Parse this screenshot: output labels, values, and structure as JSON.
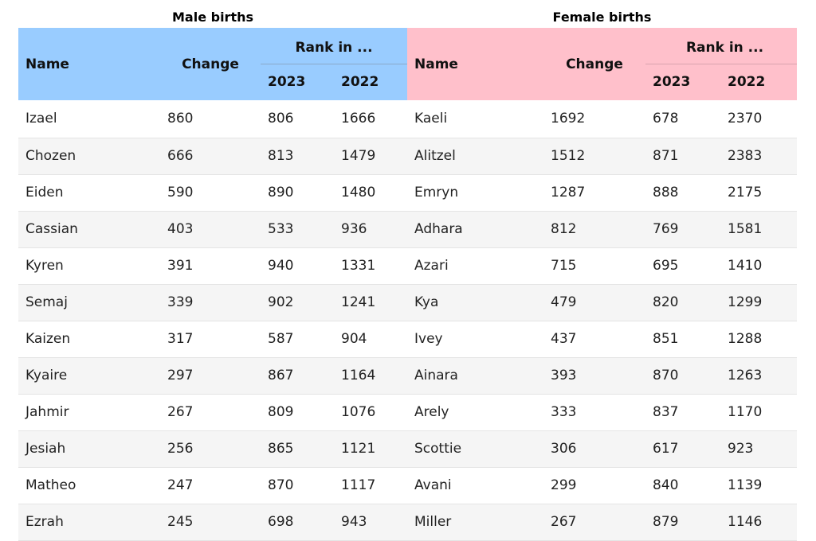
{
  "captions": {
    "male": "Male births",
    "female": "Female births"
  },
  "headers": {
    "name": "Name",
    "change": "Change",
    "rank_in": "Rank in ...",
    "year1": "2023",
    "year2": "2022"
  },
  "colors": {
    "male_header": "#99ccff",
    "female_header": "#ffc0cb",
    "alt_row": "#f5f5f5"
  },
  "rows": [
    {
      "male": {
        "name": "Izael",
        "change": "860",
        "r2023": "806",
        "r2022": "1666"
      },
      "female": {
        "name": "Kaeli",
        "change": "1692",
        "r2023": "678",
        "r2022": "2370"
      }
    },
    {
      "male": {
        "name": "Chozen",
        "change": "666",
        "r2023": "813",
        "r2022": "1479"
      },
      "female": {
        "name": "Alitzel",
        "change": "1512",
        "r2023": "871",
        "r2022": "2383"
      }
    },
    {
      "male": {
        "name": "Eiden",
        "change": "590",
        "r2023": "890",
        "r2022": "1480"
      },
      "female": {
        "name": "Emryn",
        "change": "1287",
        "r2023": "888",
        "r2022": "2175"
      }
    },
    {
      "male": {
        "name": "Cassian",
        "change": "403",
        "r2023": "533",
        "r2022": "936"
      },
      "female": {
        "name": "Adhara",
        "change": "812",
        "r2023": "769",
        "r2022": "1581"
      }
    },
    {
      "male": {
        "name": "Kyren",
        "change": "391",
        "r2023": "940",
        "r2022": "1331"
      },
      "female": {
        "name": "Azari",
        "change": "715",
        "r2023": "695",
        "r2022": "1410"
      }
    },
    {
      "male": {
        "name": "Semaj",
        "change": "339",
        "r2023": "902",
        "r2022": "1241"
      },
      "female": {
        "name": "Kya",
        "change": "479",
        "r2023": "820",
        "r2022": "1299"
      }
    },
    {
      "male": {
        "name": "Kaizen",
        "change": "317",
        "r2023": "587",
        "r2022": "904"
      },
      "female": {
        "name": "Ivey",
        "change": "437",
        "r2023": "851",
        "r2022": "1288"
      }
    },
    {
      "male": {
        "name": "Kyaire",
        "change": "297",
        "r2023": "867",
        "r2022": "1164"
      },
      "female": {
        "name": "Ainara",
        "change": "393",
        "r2023": "870",
        "r2022": "1263"
      }
    },
    {
      "male": {
        "name": "Jahmir",
        "change": "267",
        "r2023": "809",
        "r2022": "1076"
      },
      "female": {
        "name": "Arely",
        "change": "333",
        "r2023": "837",
        "r2022": "1170"
      }
    },
    {
      "male": {
        "name": "Jesiah",
        "change": "256",
        "r2023": "865",
        "r2022": "1121"
      },
      "female": {
        "name": "Scottie",
        "change": "306",
        "r2023": "617",
        "r2022": "923"
      }
    },
    {
      "male": {
        "name": "Matheo",
        "change": "247",
        "r2023": "870",
        "r2022": "1117"
      },
      "female": {
        "name": "Avani",
        "change": "299",
        "r2023": "840",
        "r2022": "1139"
      }
    },
    {
      "male": {
        "name": "Ezrah",
        "change": "245",
        "r2023": "698",
        "r2022": "943"
      },
      "female": {
        "name": "Miller",
        "change": "267",
        "r2023": "879",
        "r2022": "1146"
      }
    }
  ]
}
